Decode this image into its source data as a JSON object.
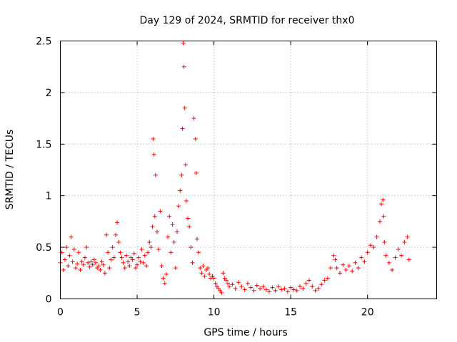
{
  "chart_data": {
    "type": "scatter",
    "title": "Day 129 of 2024, SRMTID for receiver thx0",
    "xlabel": "GPS time / hours",
    "ylabel": "SRMTID / TECUs",
    "xlim": [
      0,
      24.5
    ],
    "ylim": [
      0,
      2.5
    ],
    "xticks": [
      0,
      5,
      10,
      15,
      20
    ],
    "yticks": [
      0,
      0.5,
      1,
      1.5,
      2,
      2.5
    ],
    "grid": true,
    "marker": "plus",
    "marker_color": "#ff0000",
    "series": [
      {
        "name": "SRMTID",
        "x": [
          0.0,
          0.1,
          0.2,
          0.3,
          0.4,
          0.5,
          0.6,
          0.7,
          0.8,
          0.9,
          1.0,
          1.1,
          1.2,
          1.3,
          1.4,
          1.5,
          1.6,
          1.7,
          1.8,
          1.9,
          2.0,
          2.1,
          2.2,
          2.3,
          2.4,
          2.5,
          2.6,
          2.7,
          2.8,
          2.9,
          3.0,
          3.1,
          3.2,
          3.3,
          3.4,
          3.5,
          3.6,
          3.7,
          3.8,
          3.9,
          4.0,
          4.1,
          4.2,
          4.3,
          4.4,
          4.5,
          4.6,
          4.7,
          4.8,
          4.9,
          5.0,
          5.1,
          5.2,
          5.3,
          5.4,
          5.5,
          5.6,
          5.7,
          5.8,
          5.9,
          6.0,
          6.05,
          6.1,
          6.15,
          6.2,
          6.3,
          6.4,
          6.5,
          6.6,
          6.7,
          6.8,
          6.9,
          7.0,
          7.1,
          7.2,
          7.3,
          7.4,
          7.5,
          7.6,
          7.7,
          7.8,
          7.9,
          7.95,
          8.0,
          8.05,
          8.1,
          8.15,
          8.2,
          8.3,
          8.4,
          8.5,
          8.6,
          8.7,
          8.8,
          8.85,
          8.9,
          9.0,
          9.1,
          9.2,
          9.3,
          9.4,
          9.5,
          9.6,
          9.7,
          9.8,
          9.9,
          10.0,
          10.1,
          10.2,
          10.3,
          10.4,
          10.5,
          10.6,
          10.7,
          10.8,
          10.9,
          11.0,
          11.2,
          11.4,
          11.6,
          11.8,
          12.0,
          12.2,
          12.4,
          12.6,
          12.8,
          13.0,
          13.2,
          13.4,
          13.6,
          13.8,
          14.0,
          14.2,
          14.4,
          14.6,
          14.8,
          15.0,
          15.2,
          15.4,
          15.6,
          15.8,
          16.0,
          16.2,
          16.4,
          16.6,
          16.8,
          17.0,
          17.2,
          17.4,
          17.6,
          17.8,
          17.9,
          18.0,
          18.2,
          18.4,
          18.6,
          18.8,
          19.0,
          19.2,
          19.4,
          19.6,
          19.8,
          20.0,
          20.2,
          20.4,
          20.6,
          20.8,
          20.9,
          21.0,
          21.05,
          21.1,
          21.2,
          21.4,
          21.6,
          21.8,
          22.0,
          22.2,
          22.4,
          22.6,
          22.7
        ],
        "y": [
          0.35,
          0.45,
          0.28,
          0.38,
          0.5,
          0.32,
          0.42,
          0.6,
          0.36,
          0.48,
          0.3,
          0.34,
          0.45,
          0.28,
          0.36,
          0.33,
          0.4,
          0.5,
          0.35,
          0.31,
          0.36,
          0.33,
          0.38,
          0.35,
          0.3,
          0.32,
          0.28,
          0.36,
          0.33,
          0.25,
          0.62,
          0.45,
          0.3,
          0.38,
          0.5,
          0.4,
          0.62,
          0.74,
          0.55,
          0.45,
          0.4,
          0.35,
          0.3,
          0.42,
          0.36,
          0.32,
          0.4,
          0.38,
          0.44,
          0.3,
          0.33,
          0.4,
          0.36,
          0.48,
          0.35,
          0.42,
          0.32,
          0.45,
          0.55,
          0.5,
          0.7,
          1.55,
          1.4,
          0.8,
          1.2,
          0.65,
          0.48,
          0.85,
          0.32,
          0.2,
          0.15,
          0.24,
          0.6,
          0.8,
          0.45,
          0.72,
          0.55,
          0.3,
          0.65,
          0.9,
          1.05,
          1.2,
          1.65,
          2.48,
          2.25,
          1.85,
          1.3,
          0.95,
          0.78,
          0.7,
          0.5,
          0.35,
          1.75,
          1.55,
          1.22,
          0.58,
          0.45,
          0.3,
          0.25,
          0.32,
          0.22,
          0.28,
          0.3,
          0.24,
          0.2,
          0.22,
          0.2,
          0.15,
          0.12,
          0.1,
          0.08,
          0.06,
          0.25,
          0.2,
          0.18,
          0.15,
          0.12,
          0.14,
          0.1,
          0.16,
          0.12,
          0.09,
          0.15,
          0.11,
          0.08,
          0.13,
          0.1,
          0.12,
          0.09,
          0.07,
          0.11,
          0.08,
          0.12,
          0.09,
          0.1,
          0.07,
          0.11,
          0.09,
          0.08,
          0.12,
          0.1,
          0.15,
          0.18,
          0.12,
          0.08,
          0.1,
          0.14,
          0.18,
          0.2,
          0.3,
          0.42,
          0.38,
          0.3,
          0.25,
          0.33,
          0.28,
          0.32,
          0.27,
          0.35,
          0.3,
          0.4,
          0.36,
          0.45,
          0.52,
          0.5,
          0.6,
          0.75,
          0.92,
          0.96,
          0.8,
          0.55,
          0.42,
          0.35,
          0.28,
          0.4,
          0.48,
          0.42,
          0.55,
          0.6,
          0.38
        ]
      }
    ]
  }
}
